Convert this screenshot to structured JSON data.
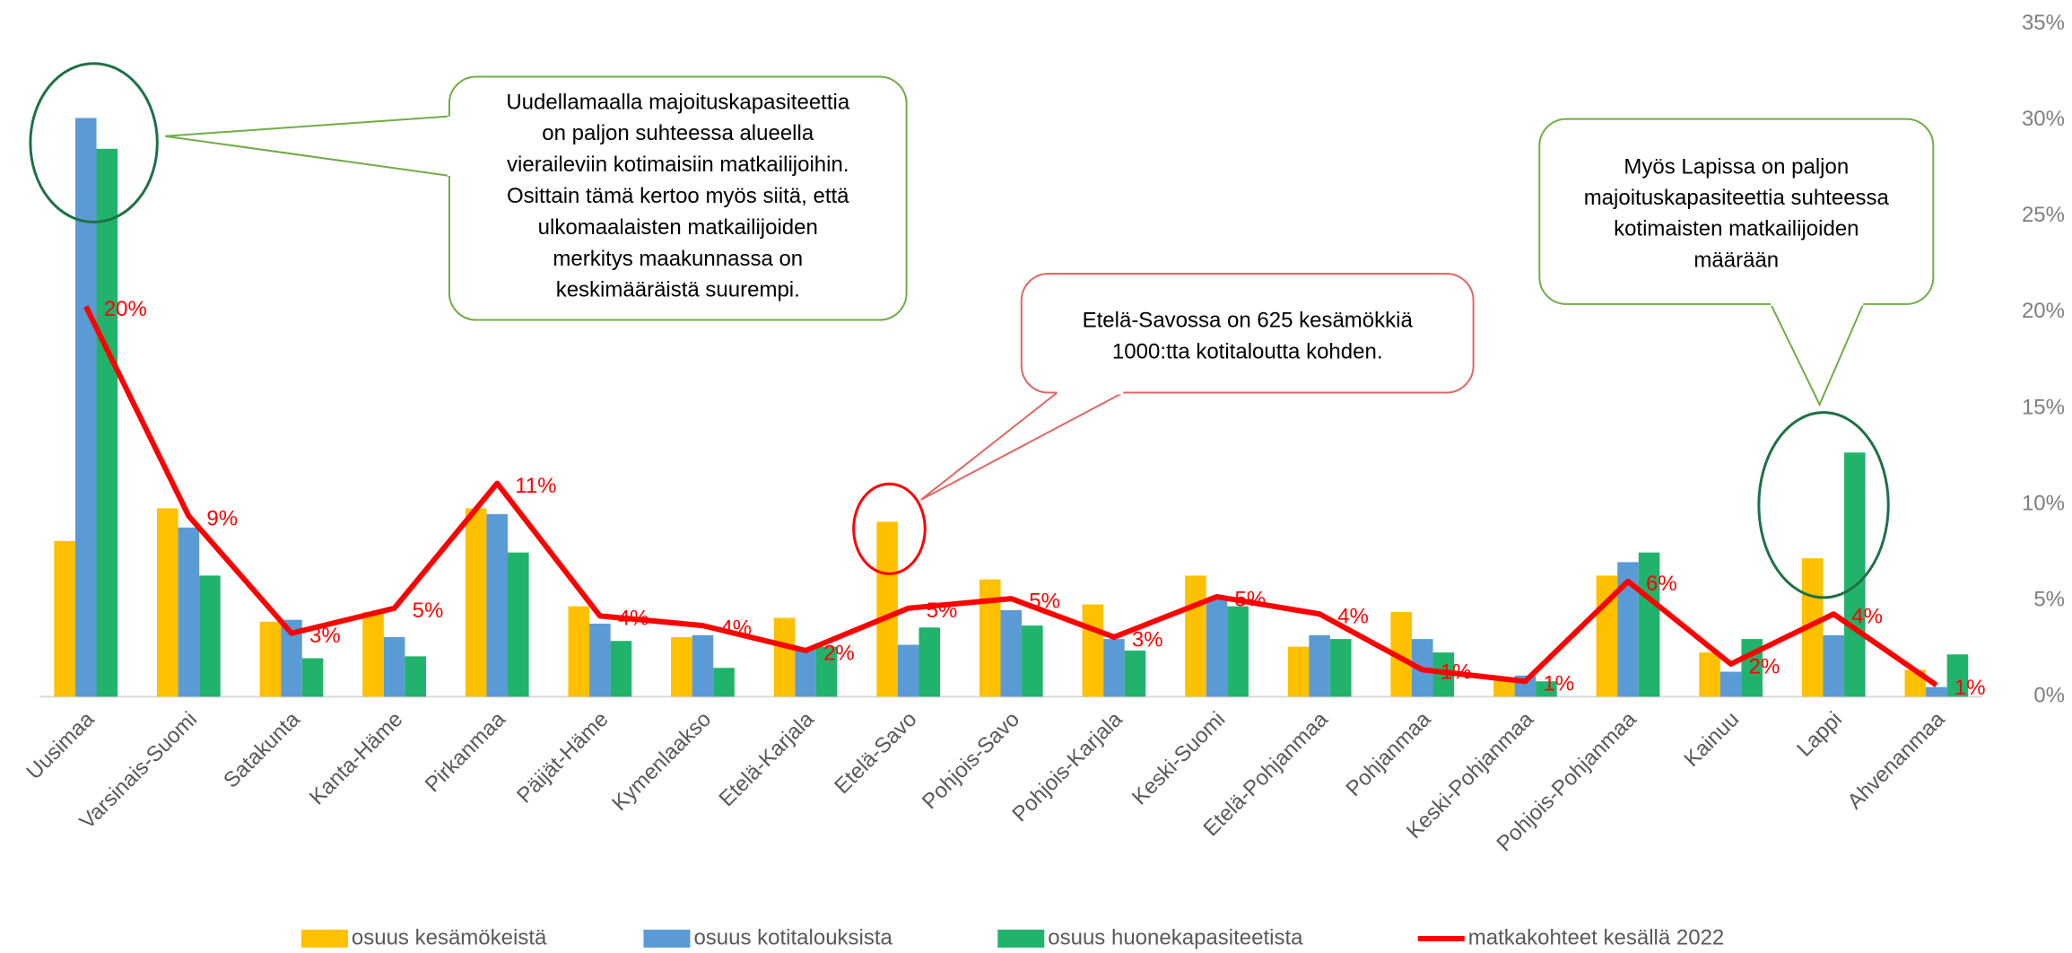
{
  "chart_data": {
    "type": "bar_line",
    "categories": [
      "Uusimaa",
      "Varsinais-Suomi",
      "Satakunta",
      "Kanta-Häme",
      "Pirkanmaa",
      "Päijät-Häme",
      "Kymenlaakso",
      "Etelä-Karjala",
      "Etelä-Savo",
      "Pohjois-Savo",
      "Pohjois-Karjala",
      "Keski-Suomi",
      "Etelä-Pohjanmaa",
      "Pohjanmaa",
      "Keski-Pohjanmaa",
      "Pohjois-Pohjanmaa",
      "Kainuu",
      "Lappi",
      "Ahvenanmaa"
    ],
    "series": [
      {
        "name": "osuus kesämökeistä",
        "type": "bar",
        "color": "#ffc000",
        "values": [
          8.1,
          9.8,
          3.9,
          4.4,
          9.8,
          4.7,
          3.1,
          4.1,
          9.1,
          6.1,
          4.8,
          6.3,
          2.6,
          4.4,
          0.9,
          6.3,
          2.3,
          7.2,
          1.4
        ]
      },
      {
        "name": "osuus kotitalouksista",
        "type": "bar",
        "color": "#5b9bd5",
        "values": [
          30.1,
          8.8,
          4.0,
          3.1,
          9.5,
          3.8,
          3.2,
          2.5,
          2.7,
          4.5,
          3.0,
          5.1,
          3.2,
          3.0,
          1.1,
          7.0,
          1.3,
          3.2,
          0.5
        ]
      },
      {
        "name": "osuus huonekapasiteetista",
        "type": "bar",
        "color": "#21b36b",
        "values": [
          28.5,
          6.3,
          2.0,
          2.1,
          7.5,
          2.9,
          1.5,
          2.6,
          3.6,
          3.7,
          2.4,
          4.7,
          3.0,
          2.3,
          0.8,
          7.5,
          3.0,
          12.7,
          2.2
        ]
      },
      {
        "name": "matkakohteet kesällä 2022",
        "type": "line",
        "color": "#ff0000",
        "values": [
          20.3,
          9.4,
          3.3,
          4.6,
          11.1,
          4.2,
          3.7,
          2.4,
          4.6,
          5.1,
          3.1,
          5.2,
          4.3,
          1.4,
          0.8,
          6.0,
          1.7,
          4.3,
          0.6
        ],
        "value_labels": [
          "20%",
          "9%",
          "3%",
          "5%",
          "11%",
          "4%",
          "4%",
          "2%",
          "5%",
          "5%",
          "3%",
          "5%",
          "4%",
          "1%",
          "1%",
          "6%",
          "2%",
          "4%",
          "1%"
        ]
      }
    ],
    "ylim": [
      0,
      35
    ],
    "yticks": [
      {
        "value": 0,
        "label": "0%"
      },
      {
        "value": 5,
        "label": "5%"
      },
      {
        "value": 10,
        "label": "10%"
      },
      {
        "value": 15,
        "label": "15%"
      },
      {
        "value": 20,
        "label": "20%"
      },
      {
        "value": 25,
        "label": "25%"
      },
      {
        "value": 30,
        "label": "30%"
      },
      {
        "value": 35,
        "label": "35%"
      }
    ],
    "legend": "bottom",
    "annotations": [
      {
        "lines": [
          "Uudellamaalla majoituskapasiteettia",
          "on paljon suhteessa alueella",
          "vieraileviin kotimaisiin matkailijoihin.",
          "Osittain tämä kertoo myös siitä, että",
          "ulkomaalaisten matkailijoiden",
          "merkitys maakunnassa on",
          "keskimääräistä suurempi."
        ]
      },
      {
        "lines": [
          "Etelä-Savossa on 625 kesämökkiä",
          "1000:tta kotitaloutta kohden."
        ]
      },
      {
        "lines": [
          "Myös Lapissa on paljon",
          "majoituskapasiteettia suhteessa",
          "kotimaisten matkailijoiden",
          "määrään"
        ]
      }
    ]
  }
}
